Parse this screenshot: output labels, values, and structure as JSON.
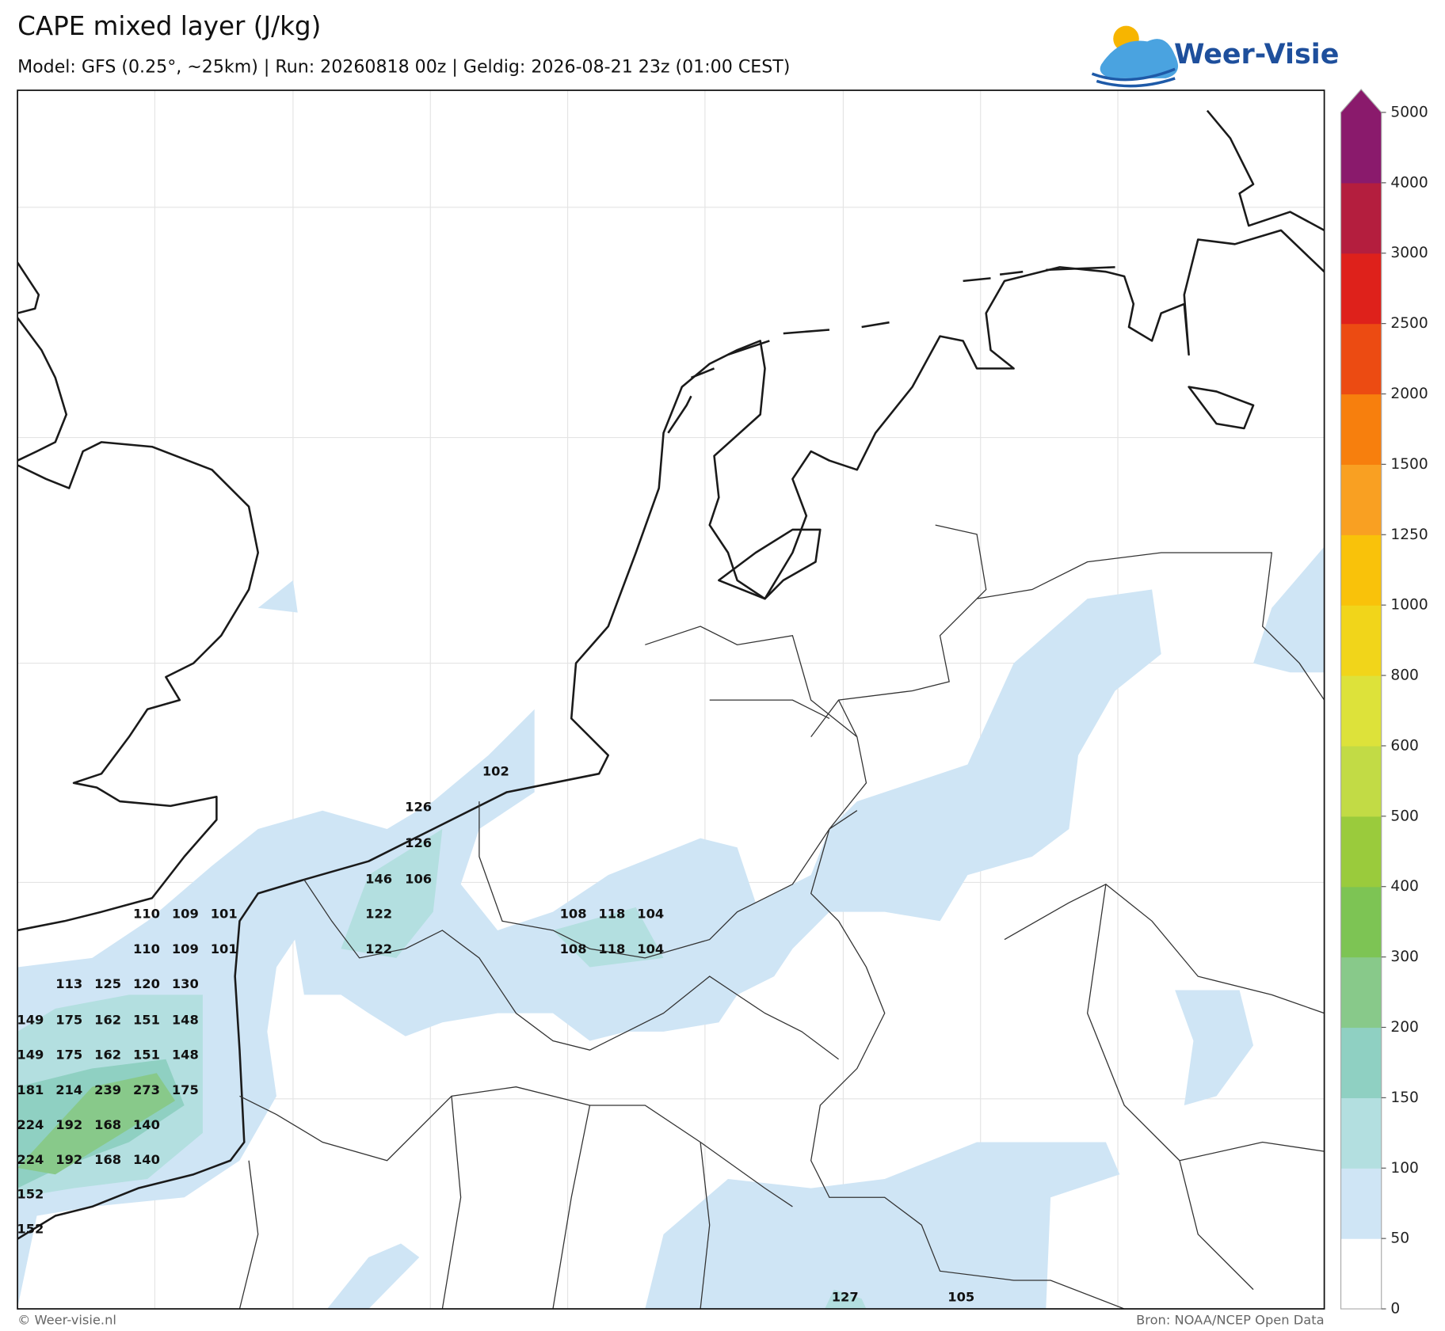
{
  "header": {
    "title": "CAPE mixed layer (J/kg)",
    "subtitle": "Model: GFS (0.25°, ~25km)  |  Run: 20260818 00z  |  Geldig: 2026-08-21 23z (01:00 CEST)",
    "logo": "Weer-Visie"
  },
  "labels": [
    102,
    126,
    126,
    146,
    106,
    110,
    109,
    101,
    122,
    108,
    118,
    104,
    110,
    109,
    101,
    122,
    108,
    118,
    104,
    113,
    125,
    120,
    130,
    149,
    175,
    162,
    151,
    148,
    149,
    175,
    162,
    151,
    148,
    181,
    214,
    239,
    273,
    175,
    224,
    192,
    168,
    140,
    224,
    192,
    168,
    140,
    152,
    152,
    127,
    105
  ],
  "legend": {
    "ticks": [
      0,
      50,
      100,
      150,
      200,
      300,
      400,
      500,
      600,
      800,
      1000,
      1250,
      1500,
      2000,
      2500,
      3000,
      4000,
      5000
    ],
    "colors": [
      "#ffffff",
      "#cfe5f5",
      "#b3dfe0",
      "#8fd0c2",
      "#88c98a",
      "#7dc454",
      "#9acb3c",
      "#c2db45",
      "#dde23a",
      "#f1d51a",
      "#f9c20a",
      "#f9a022",
      "#f77f0d",
      "#ec4b12",
      "#de211b",
      "#b41e3e",
      "#8a1a6c"
    ],
    "extend_color": "#8a1a6c"
  },
  "footer": {
    "left": "© Weer-visie.nl",
    "right": "Bron: NOAA/NCEP Open Data"
  }
}
